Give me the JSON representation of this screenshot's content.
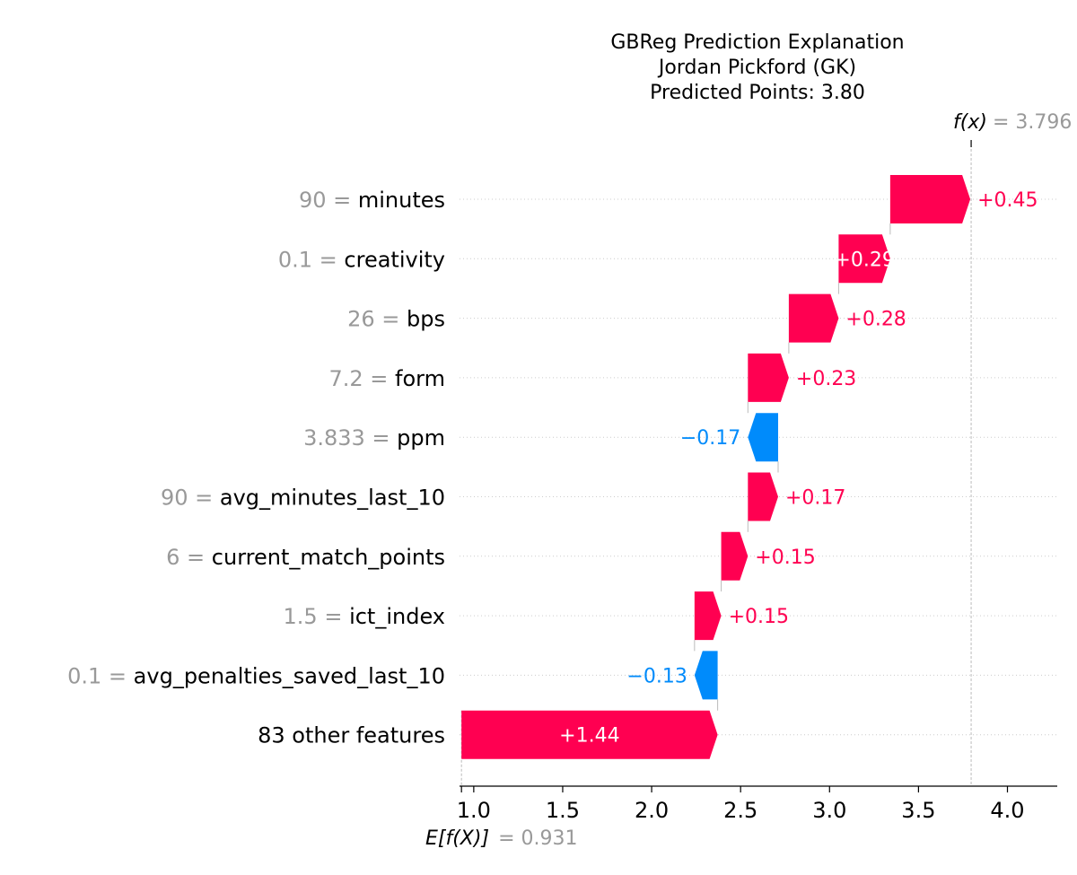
{
  "chart_data": {
    "type": "bar",
    "subtype": "waterfall",
    "title_lines": [
      "GBReg Prediction Explanation",
      "Jordan Pickford (GK)",
      "Predicted Points: 3.80"
    ],
    "base_value": 0.931,
    "base_value_label": "E[f(X)]",
    "base_value_text": "= 0.931",
    "output_value": 3.796,
    "output_value_label": "f(x)",
    "output_value_text": "= 3.796",
    "xlim": [
      0.92,
      4.28
    ],
    "xticks": [
      1.0,
      1.5,
      2.0,
      2.5,
      3.0,
      3.5,
      4.0
    ],
    "xtick_labels": [
      "1.0",
      "1.5",
      "2.0",
      "2.5",
      "3.0",
      "3.5",
      "4.0"
    ],
    "features": [
      {
        "value": "90",
        "name": "minutes",
        "contribution": 0.45,
        "label": "+0.45"
      },
      {
        "value": "0.1",
        "name": "creativity",
        "contribution": 0.29,
        "label": "+0.29"
      },
      {
        "value": "26",
        "name": "bps",
        "contribution": 0.28,
        "label": "+0.28"
      },
      {
        "value": "7.2",
        "name": "form",
        "contribution": 0.23,
        "label": "+0.23"
      },
      {
        "value": "3.833",
        "name": "ppm",
        "contribution": -0.17,
        "label": "−0.17"
      },
      {
        "value": "90",
        "name": "avg_minutes_last_10",
        "contribution": 0.17,
        "label": "+0.17"
      },
      {
        "value": "6",
        "name": "current_match_points",
        "contribution": 0.15,
        "label": "+0.15"
      },
      {
        "value": "1.5",
        "name": "ict_index",
        "contribution": 0.15,
        "label": "+0.15"
      },
      {
        "value": "0.1",
        "name": "avg_penalties_saved_last_10",
        "contribution": -0.13,
        "label": "−0.13"
      },
      {
        "value": "",
        "name": "83 other features",
        "contribution": 1.44,
        "label": "+1.44"
      }
    ],
    "colors": {
      "positive": "#ff0051",
      "negative": "#008bfb",
      "muted": "#999999"
    }
  }
}
